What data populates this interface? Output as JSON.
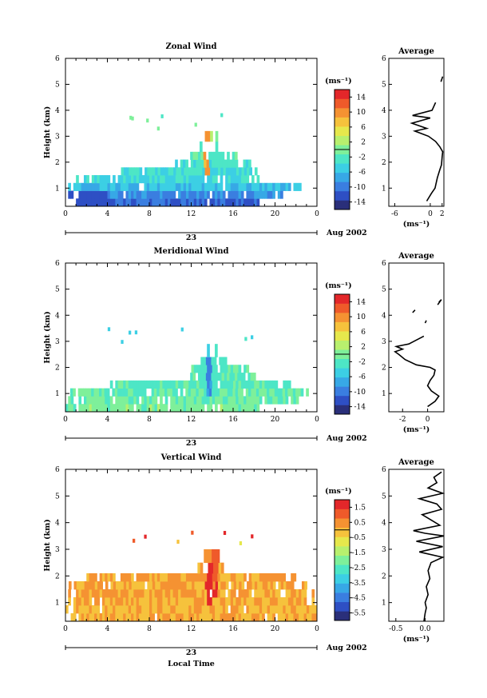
{
  "chart_data": [
    {
      "type": "heatmap",
      "title": "Zonal Wind",
      "xlabel": "",
      "ylabel": "Height (km)",
      "xlim": [
        0,
        24
      ],
      "ylim": [
        0.3,
        6
      ],
      "xticks": [
        "0",
        "4",
        "8",
        "12",
        "16",
        "20",
        "0"
      ],
      "yticks": [
        "1",
        "2",
        "3",
        "4",
        "5",
        "6"
      ],
      "date_axis": {
        "day": "23",
        "suffix": "Aug 2002"
      },
      "colorbar": {
        "unit": "(ms⁻¹)",
        "ticks": [
          "14",
          "10",
          "6",
          "2",
          "-2",
          "-6",
          "-10",
          "-14"
        ],
        "min": -16,
        "max": 16
      },
      "colormap": [
        "#2a2f7a",
        "#2e4fc4",
        "#3a7ee0",
        "#37a8e6",
        "#3ccfe4",
        "#4de6c6",
        "#7ef09a",
        "#b8f06e",
        "#e6e84c",
        "#f6c23c",
        "#f59232",
        "#ef5a2a",
        "#e3272a"
      ],
      "rows": [
        {
          "y0": 0.3,
          "y1": 0.6,
          "start": 0.0,
          "end": 19.5,
          "v": -11
        },
        {
          "y0": 0.6,
          "y1": 0.9,
          "start": 0.0,
          "end": 20.8,
          "v": -9
        },
        {
          "y0": 0.9,
          "y1": 1.2,
          "start": 0.0,
          "end": 22.3,
          "v": -6
        },
        {
          "y0": 1.2,
          "y1": 1.5,
          "start": 0.5,
          "end": 18.6,
          "v": -4
        },
        {
          "y0": 1.5,
          "y1": 1.8,
          "start": 4.3,
          "end": 18.5,
          "v": -3
        },
        {
          "y0": 1.8,
          "y1": 2.1,
          "start": 10.2,
          "end": 17.6,
          "v": -3
        },
        {
          "y0": 2.1,
          "y1": 2.4,
          "start": 11.9,
          "end": 16.2,
          "v": -2
        },
        {
          "y0": 2.4,
          "y1": 2.8,
          "start": 12.8,
          "end": 14.7,
          "v": -1
        },
        {
          "y0": 2.8,
          "y1": 3.2,
          "start": 13.3,
          "end": 14.4,
          "v": 0
        }
      ],
      "hotspots": [
        {
          "x0": 0.2,
          "x1": 3.8,
          "y0": 0.3,
          "y1": 0.7,
          "v": -13
        },
        {
          "x0": 13.1,
          "x1": 13.6,
          "y0": 1.5,
          "y1": 3.0,
          "v": 9
        }
      ],
      "average": {
        "title": "Average",
        "xlabel": "(ms⁻¹)",
        "xlim": [
          -7,
          2.3
        ],
        "xticks": [
          "-6",
          "0",
          "2"
        ],
        "xtick_values": [
          -6,
          0,
          2
        ],
        "segments": [
          [
            [
              -0.6,
              0.5
            ],
            [
              0.2,
              0.8
            ],
            [
              0.8,
              1.0
            ],
            [
              1.2,
              1.4
            ],
            [
              1.6,
              1.7
            ],
            [
              1.9,
              1.9
            ],
            [
              2.0,
              2.2
            ],
            [
              2.1,
              2.4
            ],
            [
              1.6,
              2.6
            ],
            [
              0.9,
              2.8
            ],
            [
              -0.3,
              3.0
            ],
            [
              -2.6,
              3.2
            ],
            [
              -0.6,
              3.3
            ],
            [
              -3.1,
              3.5
            ],
            [
              0.0,
              3.7
            ],
            [
              -3.0,
              3.8
            ],
            [
              0.3,
              4.0
            ],
            [
              0.9,
              4.3
            ]
          ],
          [
            [
              1.8,
              5.1
            ],
            [
              2.1,
              5.3
            ]
          ]
        ]
      }
    },
    {
      "type": "heatmap",
      "title": "Meridional Wind",
      "xlabel": "",
      "ylabel": "Height (km)",
      "xlim": [
        0,
        24
      ],
      "ylim": [
        0.3,
        6
      ],
      "xticks": [
        "0",
        "4",
        "8",
        "12",
        "16",
        "20",
        "0"
      ],
      "yticks": [
        "1",
        "2",
        "3",
        "4",
        "5",
        "6"
      ],
      "date_axis": {
        "day": "23",
        "suffix": "Aug 2002"
      },
      "colorbar": {
        "unit": "(ms⁻¹)",
        "ticks": [
          "14",
          "10",
          "6",
          "2",
          "-2",
          "-6",
          "-10",
          "-14"
        ],
        "min": -16,
        "max": 16
      },
      "colormap": [
        "#2a2f7a",
        "#2e4fc4",
        "#3a7ee0",
        "#37a8e6",
        "#3ccfe4",
        "#4de6c6",
        "#7ef09a",
        "#b8f06e",
        "#e6e84c",
        "#f6c23c",
        "#f59232",
        "#ef5a2a",
        "#e3272a"
      ],
      "rows": [
        {
          "y0": 0.3,
          "y1": 0.6,
          "start": 0.0,
          "end": 18.5,
          "v": 0
        },
        {
          "y0": 0.6,
          "y1": 0.9,
          "start": 0.0,
          "end": 22.6,
          "v": -1
        },
        {
          "y0": 0.9,
          "y1": 1.2,
          "start": 0.2,
          "end": 23.2,
          "v": -1
        },
        {
          "y0": 1.2,
          "y1": 1.5,
          "start": 3.5,
          "end": 21.3,
          "v": -2
        },
        {
          "y0": 1.5,
          "y1": 1.8,
          "start": 11.4,
          "end": 18.3,
          "v": -2
        },
        {
          "y0": 1.8,
          "y1": 2.1,
          "start": 12.0,
          "end": 17.9,
          "v": -2
        },
        {
          "y0": 2.1,
          "y1": 2.4,
          "start": 12.4,
          "end": 15.4,
          "v": -3
        },
        {
          "y0": 2.4,
          "y1": 2.9,
          "start": 13.0,
          "end": 14.4,
          "v": -4
        }
      ],
      "hotspots": [
        {
          "x0": 13.3,
          "x1": 13.8,
          "y0": 1.0,
          "y1": 2.4,
          "v": -9
        },
        {
          "x0": 6.0,
          "x1": 8.0,
          "y0": 1.6,
          "y1": 1.9,
          "v": -4
        }
      ],
      "average": {
        "title": "Average",
        "xlabel": "(ms⁻¹)",
        "xlim": [
          -3.1,
          1.3
        ],
        "xticks": [
          "-2",
          "0"
        ],
        "xtick_values": [
          -2,
          0
        ],
        "segments": [
          [
            [
              0.0,
              0.5
            ],
            [
              0.6,
              0.7
            ],
            [
              0.9,
              0.9
            ],
            [
              0.3,
              1.1
            ],
            [
              0.0,
              1.3
            ],
            [
              0.2,
              1.5
            ],
            [
              0.5,
              1.7
            ],
            [
              0.6,
              1.9
            ],
            [
              0.2,
              2.0
            ],
            [
              -0.9,
              2.1
            ],
            [
              -1.8,
              2.3
            ],
            [
              -2.3,
              2.5
            ],
            [
              -2.6,
              2.6
            ],
            [
              -2.0,
              2.7
            ],
            [
              -2.5,
              2.8
            ],
            [
              -1.5,
              2.9
            ],
            [
              -1.1,
              3.0
            ],
            [
              -0.3,
              3.2
            ]
          ],
          [
            [
              -1.2,
              4.1
            ],
            [
              -1.0,
              4.2
            ]
          ],
          [
            [
              -0.2,
              3.7
            ],
            [
              -0.1,
              3.8
            ]
          ],
          [
            [
              0.8,
              4.4
            ],
            [
              1.1,
              4.6
            ],
            [
              0.9,
              4.5
            ]
          ]
        ]
      }
    },
    {
      "type": "heatmap",
      "title": "Vertical Wind",
      "xlabel": "Local Time",
      "ylabel": "Height (km)",
      "xlim": [
        0,
        24
      ],
      "ylim": [
        0.3,
        6
      ],
      "xticks": [
        "0",
        "4",
        "8",
        "12",
        "16",
        "20",
        "0"
      ],
      "yticks": [
        "1",
        "2",
        "3",
        "4",
        "5",
        "6"
      ],
      "date_axis": {
        "day": "23",
        "suffix": "Aug 2002"
      },
      "colorbar": {
        "unit": "(ms⁻¹)",
        "ticks": [
          "1.5",
          "0.5",
          "-0.5",
          "-1.5",
          "-2.5",
          "-3.5",
          "-4.5",
          "-5.5"
        ],
        "min": -6,
        "max": 2
      },
      "colormap": [
        "#2a2f7a",
        "#2e4fc4",
        "#3a7ee0",
        "#37a8e6",
        "#3ccfe4",
        "#4de6c6",
        "#7ef09a",
        "#b8f06e",
        "#e6e84c",
        "#f6c23c",
        "#f59232",
        "#ef5a2a",
        "#e3272a"
      ],
      "rows": [
        {
          "y0": 0.3,
          "y1": 0.6,
          "start": 0.0,
          "end": 24.0,
          "v": 0.1
        },
        {
          "y0": 0.6,
          "y1": 0.9,
          "start": 0.0,
          "end": 24.0,
          "v": 0.0
        },
        {
          "y0": 0.9,
          "y1": 1.2,
          "start": 0.0,
          "end": 24.0,
          "v": 0.1
        },
        {
          "y0": 1.2,
          "y1": 1.5,
          "start": 0.0,
          "end": 24.0,
          "v": 0.2
        },
        {
          "y0": 1.5,
          "y1": 1.8,
          "start": 0.3,
          "end": 23.0,
          "v": 0.2
        },
        {
          "y0": 1.8,
          "y1": 2.1,
          "start": 2.0,
          "end": 22.0,
          "v": 0.3
        },
        {
          "y0": 2.1,
          "y1": 2.5,
          "start": 12.6,
          "end": 15.0,
          "v": 0.4
        },
        {
          "y0": 2.5,
          "y1": 3.0,
          "start": 13.2,
          "end": 14.6,
          "v": 0.6
        }
      ],
      "hotspots": [
        {
          "x0": 13.3,
          "x1": 13.9,
          "y0": 0.9,
          "y1": 2.5,
          "v": 1.8
        },
        {
          "x0": 13.9,
          "x1": 14.4,
          "y0": 1.2,
          "y1": 2.6,
          "v": 1.2
        },
        {
          "x0": 14.4,
          "x1": 14.8,
          "y0": 2.6,
          "y1": 3.0,
          "v": 0.6
        }
      ],
      "average": {
        "title": "Average",
        "xlabel": "(ms⁻¹)",
        "xlim": [
          -0.62,
          0.32
        ],
        "xticks": [
          "-0.5",
          "0.0"
        ],
        "xtick_values": [
          -0.5,
          0.0
        ],
        "segments": [
          [
            [
              -0.02,
              0.3
            ],
            [
              0.0,
              0.6
            ],
            [
              0.02,
              0.8
            ],
            [
              0.0,
              1.0
            ],
            [
              0.05,
              1.3
            ],
            [
              0.02,
              1.6
            ],
            [
              0.08,
              1.9
            ],
            [
              0.05,
              2.2
            ],
            [
              0.1,
              2.5
            ],
            [
              0.3,
              2.7
            ],
            [
              -0.1,
              2.9
            ],
            [
              0.3,
              3.1
            ],
            [
              -0.15,
              3.3
            ],
            [
              0.32,
              3.5
            ],
            [
              0.0,
              3.6
            ],
            [
              -0.2,
              3.7
            ],
            [
              0.25,
              3.9
            ],
            [
              0.1,
              4.1
            ],
            [
              -0.05,
              4.3
            ],
            [
              0.28,
              4.5
            ],
            [
              0.2,
              4.7
            ],
            [
              -0.1,
              4.9
            ],
            [
              0.3,
              5.1
            ],
            [
              0.05,
              5.3
            ],
            [
              0.2,
              5.5
            ],
            [
              0.15,
              5.7
            ],
            [
              0.28,
              5.9
            ]
          ]
        ]
      }
    }
  ]
}
